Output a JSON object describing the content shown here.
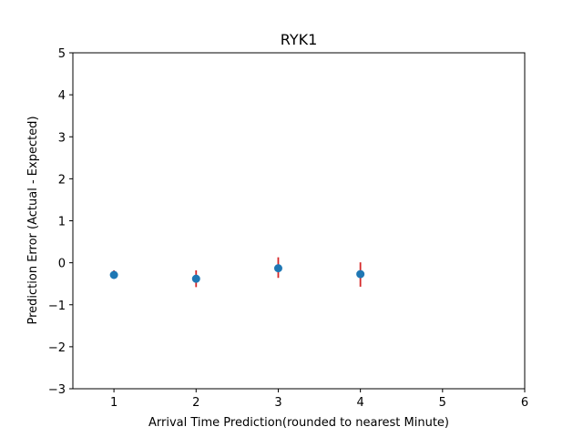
{
  "chart_data": {
    "type": "scatter",
    "title": "RYK1",
    "xlabel": "Arrival Time Prediction(rounded to nearest Minute)",
    "ylabel": "Prediction Error (Actual - Expected)",
    "xlim": [
      0.5,
      6
    ],
    "ylim": [
      -3,
      5
    ],
    "x_ticks": [
      1,
      2,
      3,
      4,
      5,
      6
    ],
    "y_ticks": [
      -3,
      -2,
      -1,
      0,
      1,
      2,
      3,
      4,
      5
    ],
    "x_tick_labels": [
      "1",
      "2",
      "3",
      "4",
      "5",
      "6"
    ],
    "y_tick_labels": [
      "−3",
      "−2",
      "−1",
      "0",
      "1",
      "2",
      "3",
      "4",
      "5"
    ],
    "grid": false,
    "points": [
      {
        "x": 1,
        "y": -0.29,
        "err_low": -0.38,
        "err_high": -0.18
      },
      {
        "x": 2,
        "y": -0.38,
        "err_low": -0.58,
        "err_high": -0.18
      },
      {
        "x": 3,
        "y": -0.13,
        "err_low": -0.36,
        "err_high": 0.13
      },
      {
        "x": 4,
        "y": -0.27,
        "err_low": -0.57,
        "err_high": 0.01
      }
    ],
    "colors": {
      "marker": "#1f77b4",
      "errorbar": "#d62728",
      "axes": "#000000"
    }
  }
}
